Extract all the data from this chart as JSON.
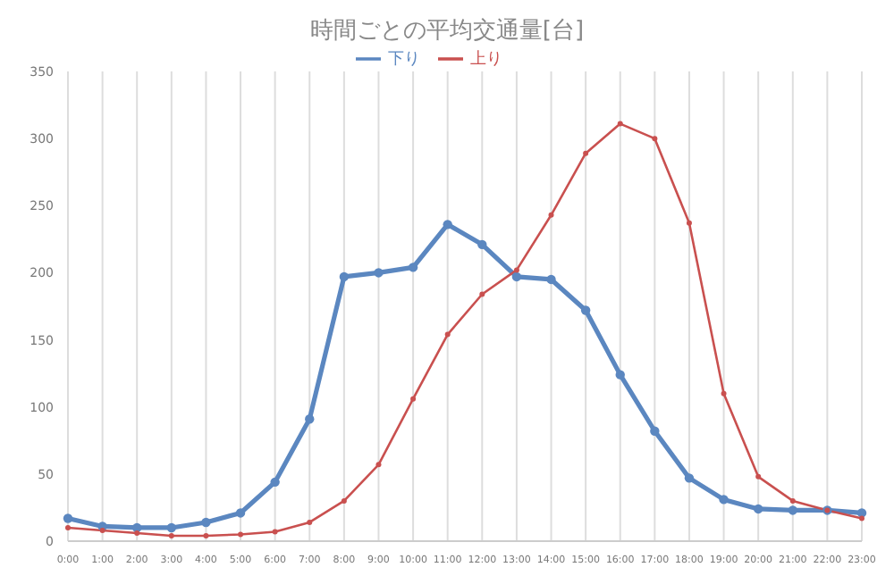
{
  "chart_data": {
    "type": "line",
    "title": "時間ごとの平均交通量[台]",
    "categories": [
      "0:00",
      "1:00",
      "2:00",
      "3:00",
      "4:00",
      "5:00",
      "6:00",
      "7:00",
      "8:00",
      "9:00",
      "10:00",
      "11:00",
      "12:00",
      "13:00",
      "14:00",
      "15:00",
      "16:00",
      "17:00",
      "18:00",
      "19:00",
      "20:00",
      "21:00",
      "22:00",
      "23:00"
    ],
    "series": [
      {
        "name": "下り",
        "color": "#5b87c0",
        "values": [
          17,
          11,
          10,
          10,
          14,
          21,
          44,
          91,
          197,
          200,
          204,
          236,
          221,
          197,
          195,
          172,
          124,
          82,
          47,
          31,
          24,
          23,
          23,
          21
        ]
      },
      {
        "name": "上り",
        "color": "#c9504f",
        "values": [
          10,
          8,
          6,
          4,
          4,
          5,
          7,
          14,
          30,
          57,
          106,
          154,
          184,
          202,
          243,
          289,
          311,
          300,
          237,
          110,
          48,
          30,
          23,
          17
        ]
      }
    ],
    "ylim": [
      0,
      350
    ],
    "yticks": [
      0,
      50,
      100,
      150,
      200,
      250,
      300,
      350
    ],
    "grid": "x",
    "legend": "top",
    "marker": "circle",
    "line_style": "solid"
  }
}
